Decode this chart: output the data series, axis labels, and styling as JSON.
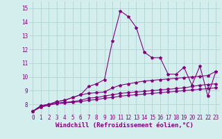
{
  "x": [
    0,
    1,
    2,
    3,
    4,
    5,
    6,
    7,
    8,
    9,
    10,
    11,
    12,
    13,
    14,
    15,
    16,
    17,
    18,
    19,
    20,
    21,
    22,
    23
  ],
  "line1": [
    7.5,
    7.9,
    8.0,
    8.2,
    8.3,
    8.5,
    8.7,
    9.3,
    9.5,
    9.8,
    12.6,
    14.8,
    14.4,
    13.6,
    11.8,
    11.4,
    11.4,
    10.2,
    10.2,
    10.7,
    9.4,
    10.8,
    8.6,
    10.4
  ],
  "line2": [
    7.5,
    7.9,
    8.0,
    8.2,
    8.3,
    8.5,
    8.7,
    8.8,
    8.85,
    8.9,
    9.2,
    9.4,
    9.5,
    9.6,
    9.7,
    9.75,
    9.8,
    9.85,
    9.9,
    9.95,
    10.0,
    10.05,
    10.1,
    10.4
  ],
  "line3": [
    7.5,
    7.8,
    7.95,
    8.1,
    8.15,
    8.2,
    8.3,
    8.45,
    8.5,
    8.6,
    8.7,
    8.8,
    8.85,
    8.9,
    8.95,
    9.0,
    9.05,
    9.1,
    9.15,
    9.2,
    9.3,
    9.4,
    9.45,
    9.5
  ],
  "line4": [
    7.5,
    7.8,
    7.95,
    8.05,
    8.1,
    8.15,
    8.2,
    8.3,
    8.35,
    8.45,
    8.5,
    8.6,
    8.65,
    8.7,
    8.75,
    8.8,
    8.85,
    8.9,
    8.95,
    9.0,
    9.05,
    9.1,
    9.15,
    9.2
  ],
  "line_color": "#800080",
  "bg_color": "#d4eeee",
  "grid_color": "#aed4d4",
  "xlabel": "Windchill (Refroidissement éolien,°C)",
  "xlabel_fontsize": 6.5,
  "tick_fontsize": 5.5,
  "ylim": [
    7.3,
    15.5
  ],
  "xlim": [
    -0.5,
    23.5
  ],
  "yticks": [
    8,
    9,
    10,
    11,
    12,
    13,
    14,
    15
  ]
}
